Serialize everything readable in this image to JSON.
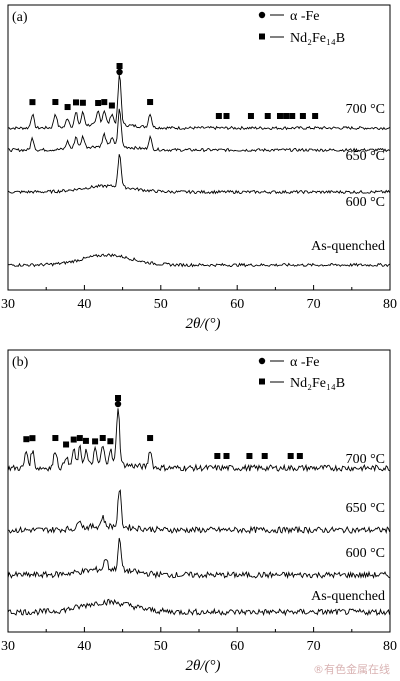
{
  "chart_data": [
    {
      "type": "line",
      "panel_label": "(a)",
      "xlabel": "2θ/(°)",
      "xlim": [
        30,
        80
      ],
      "xticks": [
        30,
        40,
        50,
        60,
        70,
        80
      ],
      "legend": [
        {
          "marker": "circle",
          "label": "α -Fe"
        },
        {
          "marker": "square",
          "label": "Nd₂Fe₁₄B"
        }
      ],
      "legend_position": "top-right",
      "series": [
        {
          "name": "700 °C",
          "peaks": [
            33.2,
            36.2,
            37.8,
            38.9,
            39.8,
            41.8,
            42.6,
            43.6,
            44.6,
            48.6
          ]
        },
        {
          "name": "650 °C",
          "peaks": [
            33.2,
            37.8,
            38.9,
            39.8,
            42.6,
            43.6,
            44.6,
            48.6
          ]
        },
        {
          "name": "600 °C",
          "peaks": [
            44.6
          ]
        },
        {
          "name": "As-quenched",
          "peaks": []
        }
      ],
      "markers_squares": [
        33.2,
        36.2,
        37.8,
        38.9,
        39.8,
        41.8,
        42.6,
        43.6,
        44.6,
        48.6,
        57.6,
        58.6,
        61.8,
        64.0,
        65.6,
        66.4,
        67.2,
        68.6,
        70.2
      ],
      "markers_circles": [
        44.6
      ]
    },
    {
      "type": "line",
      "panel_label": "(b)",
      "xlabel": "2θ/(°)",
      "xlim": [
        30,
        80
      ],
      "xticks": [
        30,
        40,
        50,
        60,
        70,
        80
      ],
      "legend": [
        {
          "marker": "circle",
          "label": "α -Fe"
        },
        {
          "marker": "square",
          "label": "Nd₂Fe₁₄B"
        }
      ],
      "legend_position": "top-right",
      "series": [
        {
          "name": "700 °C",
          "peaks": [
            32.4,
            33.2,
            36.2,
            37.6,
            38.6,
            39.4,
            40.2,
            41.4,
            42.4,
            43.4,
            44.4,
            48.6
          ]
        },
        {
          "name": "650 °C",
          "peaks": [
            39.4,
            42.4,
            44.6
          ]
        },
        {
          "name": "600 °C",
          "peaks": [
            42.8,
            44.6
          ]
        },
        {
          "name": "As-quenched",
          "peaks": [
            42.8
          ]
        }
      ],
      "markers_squares": [
        32.4,
        33.2,
        36.2,
        37.6,
        38.6,
        39.4,
        40.2,
        41.4,
        42.4,
        43.4,
        44.4,
        48.6,
        57.4,
        58.6,
        61.6,
        63.6,
        67.0,
        68.2
      ],
      "markers_circles": [
        44.4
      ]
    }
  ],
  "watermark": "®有色金属在线"
}
